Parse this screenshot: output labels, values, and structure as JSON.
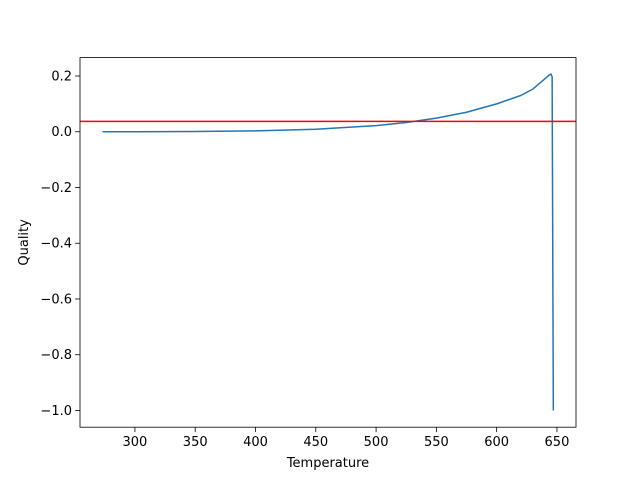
{
  "chart_data": {
    "type": "line",
    "xlabel": "Temperature",
    "ylabel": "Quality",
    "x": [
      273.15,
      300,
      350,
      400,
      450,
      500,
      525,
      550,
      575,
      600,
      620,
      630,
      640,
      644,
      645,
      646,
      647
    ],
    "series": [
      {
        "color": "#1f77b4",
        "values": [
          0,
          0,
          0.001,
          0.003,
          0.009,
          0.022,
          0.033,
          0.049,
          0.07,
          0.1,
          0.13,
          0.153,
          0.19,
          0.205,
          0.207,
          0.197,
          -1.0
        ]
      }
    ],
    "hline": {
      "value": 0.037,
      "color": "#ff0000"
    },
    "xlim": [
      254.45,
      665.8
    ],
    "ylim": [
      -1.06,
      0.266
    ],
    "xticks": [
      300,
      350,
      400,
      450,
      500,
      550,
      600,
      650
    ],
    "yticks": [
      {
        "value": -1.0,
        "label": "−1.0"
      },
      {
        "value": -0.8,
        "label": "−0.8"
      },
      {
        "value": -0.6,
        "label": "−0.6"
      },
      {
        "value": -0.4,
        "label": "−0.4"
      },
      {
        "value": -0.2,
        "label": "−0.2"
      },
      {
        "value": 0,
        "label": "0.0"
      },
      0.2
    ]
  }
}
